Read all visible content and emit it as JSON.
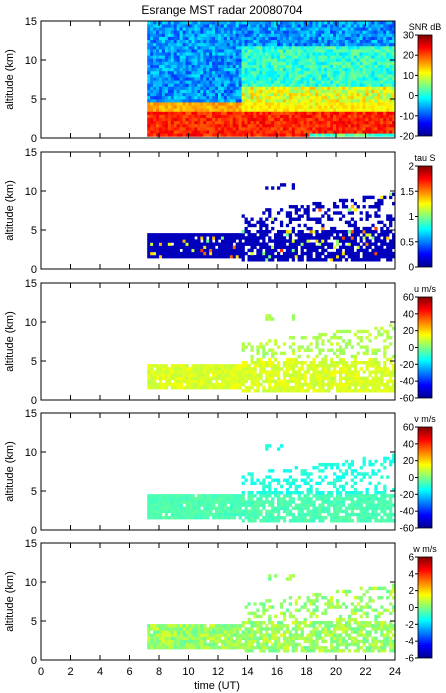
{
  "chart_data": {
    "type": "heatmap",
    "title": "Esrange MST radar 20080704",
    "xlabel": "time (UT)",
    "xlim": [
      0,
      24
    ],
    "xticks": [
      0,
      2,
      4,
      6,
      8,
      10,
      12,
      14,
      16,
      18,
      20,
      22,
      24
    ],
    "grid": false,
    "panels": [
      {
        "name": "snr",
        "ylabel": "altitude (km)",
        "ylim": [
          0,
          15
        ],
        "yticks": [
          0,
          5,
          10,
          15
        ],
        "colorbar_label": "SNR dB",
        "clim": [
          -20,
          30
        ],
        "cticks": [
          -20,
          -10,
          0,
          10,
          20,
          30
        ],
        "data_time_range": [
          7.2,
          24
        ],
        "data_alt_range": [
          0.2,
          15
        ]
      },
      {
        "name": "tau",
        "ylabel": "altitude (km)",
        "ylim": [
          0,
          15
        ],
        "yticks": [
          0,
          5,
          10,
          15
        ],
        "colorbar_label": "tau S",
        "clim": [
          0,
          2
        ],
        "cticks": [
          0,
          0.5,
          1,
          1.5,
          2
        ],
        "data_time_range": [
          7.2,
          24
        ],
        "data_alt_range": [
          1.0,
          11.5
        ]
      },
      {
        "name": "u",
        "ylabel": "altitude (km)",
        "ylim": [
          0,
          15
        ],
        "yticks": [
          0,
          5,
          10,
          15
        ],
        "colorbar_label": "u m/s",
        "clim": [
          -60,
          60
        ],
        "cticks": [
          -60,
          -40,
          -20,
          0,
          20,
          40,
          60
        ],
        "data_time_range": [
          7.2,
          24
        ],
        "data_alt_range": [
          1.0,
          11.5
        ]
      },
      {
        "name": "v",
        "ylabel": "altitude (km)",
        "ylim": [
          0,
          15
        ],
        "yticks": [
          0,
          5,
          10,
          15
        ],
        "colorbar_label": "v m/s",
        "clim": [
          -60,
          60
        ],
        "cticks": [
          -60,
          -40,
          -20,
          0,
          20,
          40,
          60
        ],
        "data_time_range": [
          7.2,
          24
        ],
        "data_alt_range": [
          1.0,
          11.5
        ]
      },
      {
        "name": "w",
        "ylabel": "altitude (km)",
        "ylim": [
          0,
          15
        ],
        "yticks": [
          0,
          5,
          10,
          15
        ],
        "colorbar_label": "w m/s",
        "clim": [
          -6,
          6
        ],
        "cticks": [
          -6,
          -4,
          -2,
          0,
          2,
          4,
          6
        ],
        "data_time_range": [
          7.2,
          24
        ],
        "data_alt_range": [
          0.2,
          13.5
        ]
      }
    ]
  }
}
